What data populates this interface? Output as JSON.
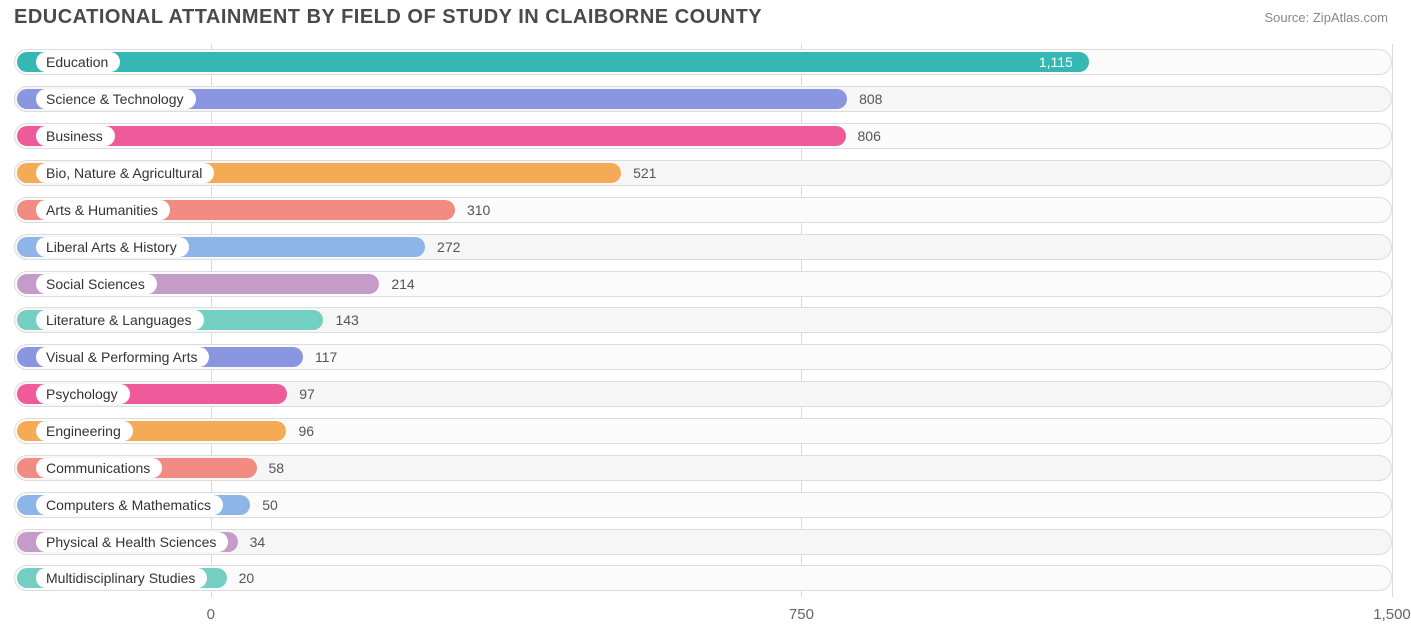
{
  "title": "EDUCATIONAL ATTAINMENT BY FIELD OF STUDY IN CLAIBORNE COUNTY",
  "source": "Source: ZipAtlas.com",
  "chart": {
    "type": "bar-horizontal",
    "background_color": "#ffffff",
    "track_border_color": "#dcdcdc",
    "track_fill_color": "#fafafa",
    "grid_color": "#d9d9d9",
    "title_color": "#4a4a4a",
    "title_fontsize": 20,
    "label_fontsize": 14,
    "value_fontsize": 14,
    "tick_fontsize": 15,
    "bar_radius": 11,
    "track_radius": 14,
    "xmin": -250,
    "xmax": 1500,
    "xticks": [
      {
        "value": 0,
        "label": "0"
      },
      {
        "value": 750,
        "label": "750"
      },
      {
        "value": 1500,
        "label": "1,500"
      }
    ],
    "value_inside_threshold": 1000,
    "color_palette": {
      "teal": "#35b8b4",
      "periwinkle": "#8b96e0",
      "pink": "#ef5a9b",
      "orange": "#f5ab55",
      "salmon": "#f28b82",
      "blue": "#8db5e8",
      "mauve": "#c49bc9",
      "seafoam": "#74cfc3"
    },
    "rows": [
      {
        "label": "Education",
        "value": 1115,
        "display": "1,115",
        "color": "#35b8b4"
      },
      {
        "label": "Science & Technology",
        "value": 808,
        "display": "808",
        "color": "#8b96e0"
      },
      {
        "label": "Business",
        "value": 806,
        "display": "806",
        "color": "#ef5a9b"
      },
      {
        "label": "Bio, Nature & Agricultural",
        "value": 521,
        "display": "521",
        "color": "#f5ab55"
      },
      {
        "label": "Arts & Humanities",
        "value": 310,
        "display": "310",
        "color": "#f28b82"
      },
      {
        "label": "Liberal Arts & History",
        "value": 272,
        "display": "272",
        "color": "#8db5e8"
      },
      {
        "label": "Social Sciences",
        "value": 214,
        "display": "214",
        "color": "#c49bc9"
      },
      {
        "label": "Literature & Languages",
        "value": 143,
        "display": "143",
        "color": "#74cfc3"
      },
      {
        "label": "Visual & Performing Arts",
        "value": 117,
        "display": "117",
        "color": "#8b96e0"
      },
      {
        "label": "Psychology",
        "value": 97,
        "display": "97",
        "color": "#ef5a9b"
      },
      {
        "label": "Engineering",
        "value": 96,
        "display": "96",
        "color": "#f5ab55"
      },
      {
        "label": "Communications",
        "value": 58,
        "display": "58",
        "color": "#f28b82"
      },
      {
        "label": "Computers & Mathematics",
        "value": 50,
        "display": "50",
        "color": "#8db5e8"
      },
      {
        "label": "Physical & Health Sciences",
        "value": 34,
        "display": "34",
        "color": "#c49bc9"
      },
      {
        "label": "Multidisciplinary Studies",
        "value": 20,
        "display": "20",
        "color": "#74cfc3"
      }
    ]
  }
}
